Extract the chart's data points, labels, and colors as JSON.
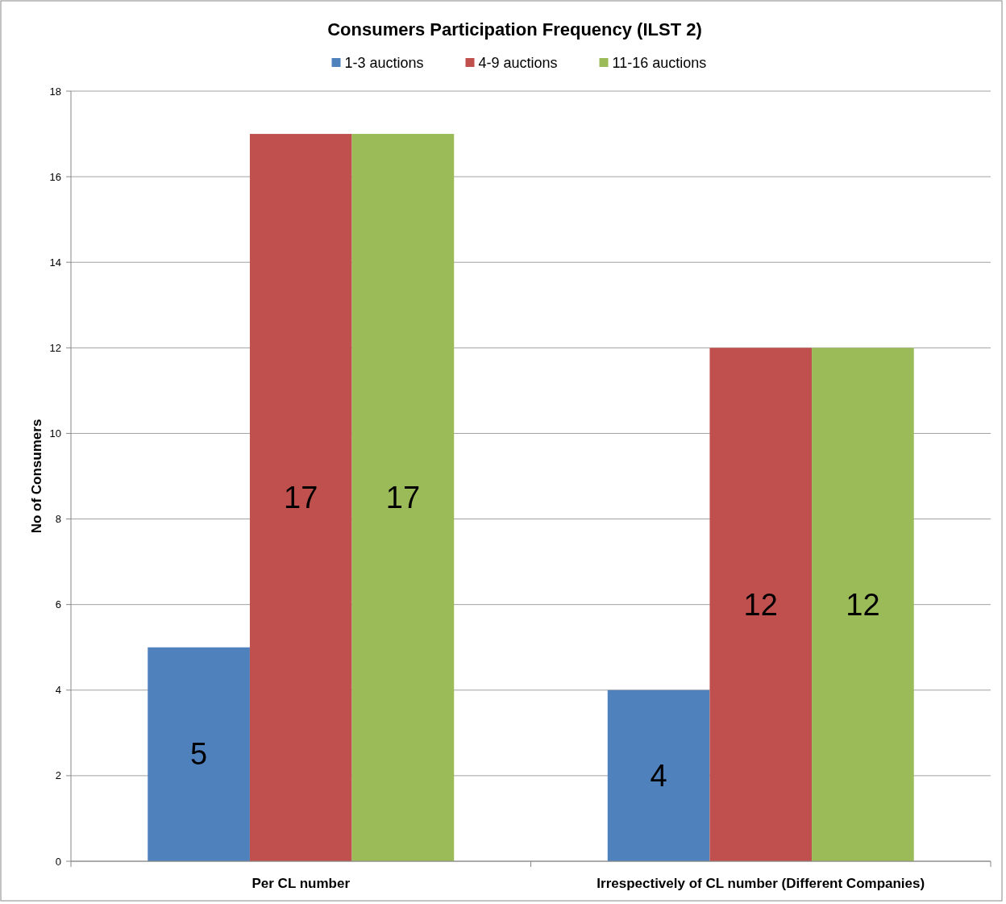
{
  "chart_data": {
    "type": "bar",
    "title": "Consumers Participation Frequency (ILST 2)",
    "ylabel": "No of Consumers",
    "categories": [
      "Per CL number",
      "Irrespectively of CL number (Different Companies)"
    ],
    "series": [
      {
        "name": "1-3 auctions",
        "color": "#4f81bd",
        "values": [
          5,
          4
        ]
      },
      {
        "name": "4-9 auctions",
        "color": "#c0504d",
        "values": [
          17,
          12
        ]
      },
      {
        "name": "11-16 auctions",
        "color": "#9bbb59",
        "values": [
          17,
          12
        ]
      }
    ],
    "ylim": [
      0,
      18
    ],
    "yticks": [
      0,
      2,
      4,
      6,
      8,
      10,
      12,
      14,
      16,
      18
    ],
    "grid": "y",
    "legend": "top",
    "data_labels": true
  }
}
